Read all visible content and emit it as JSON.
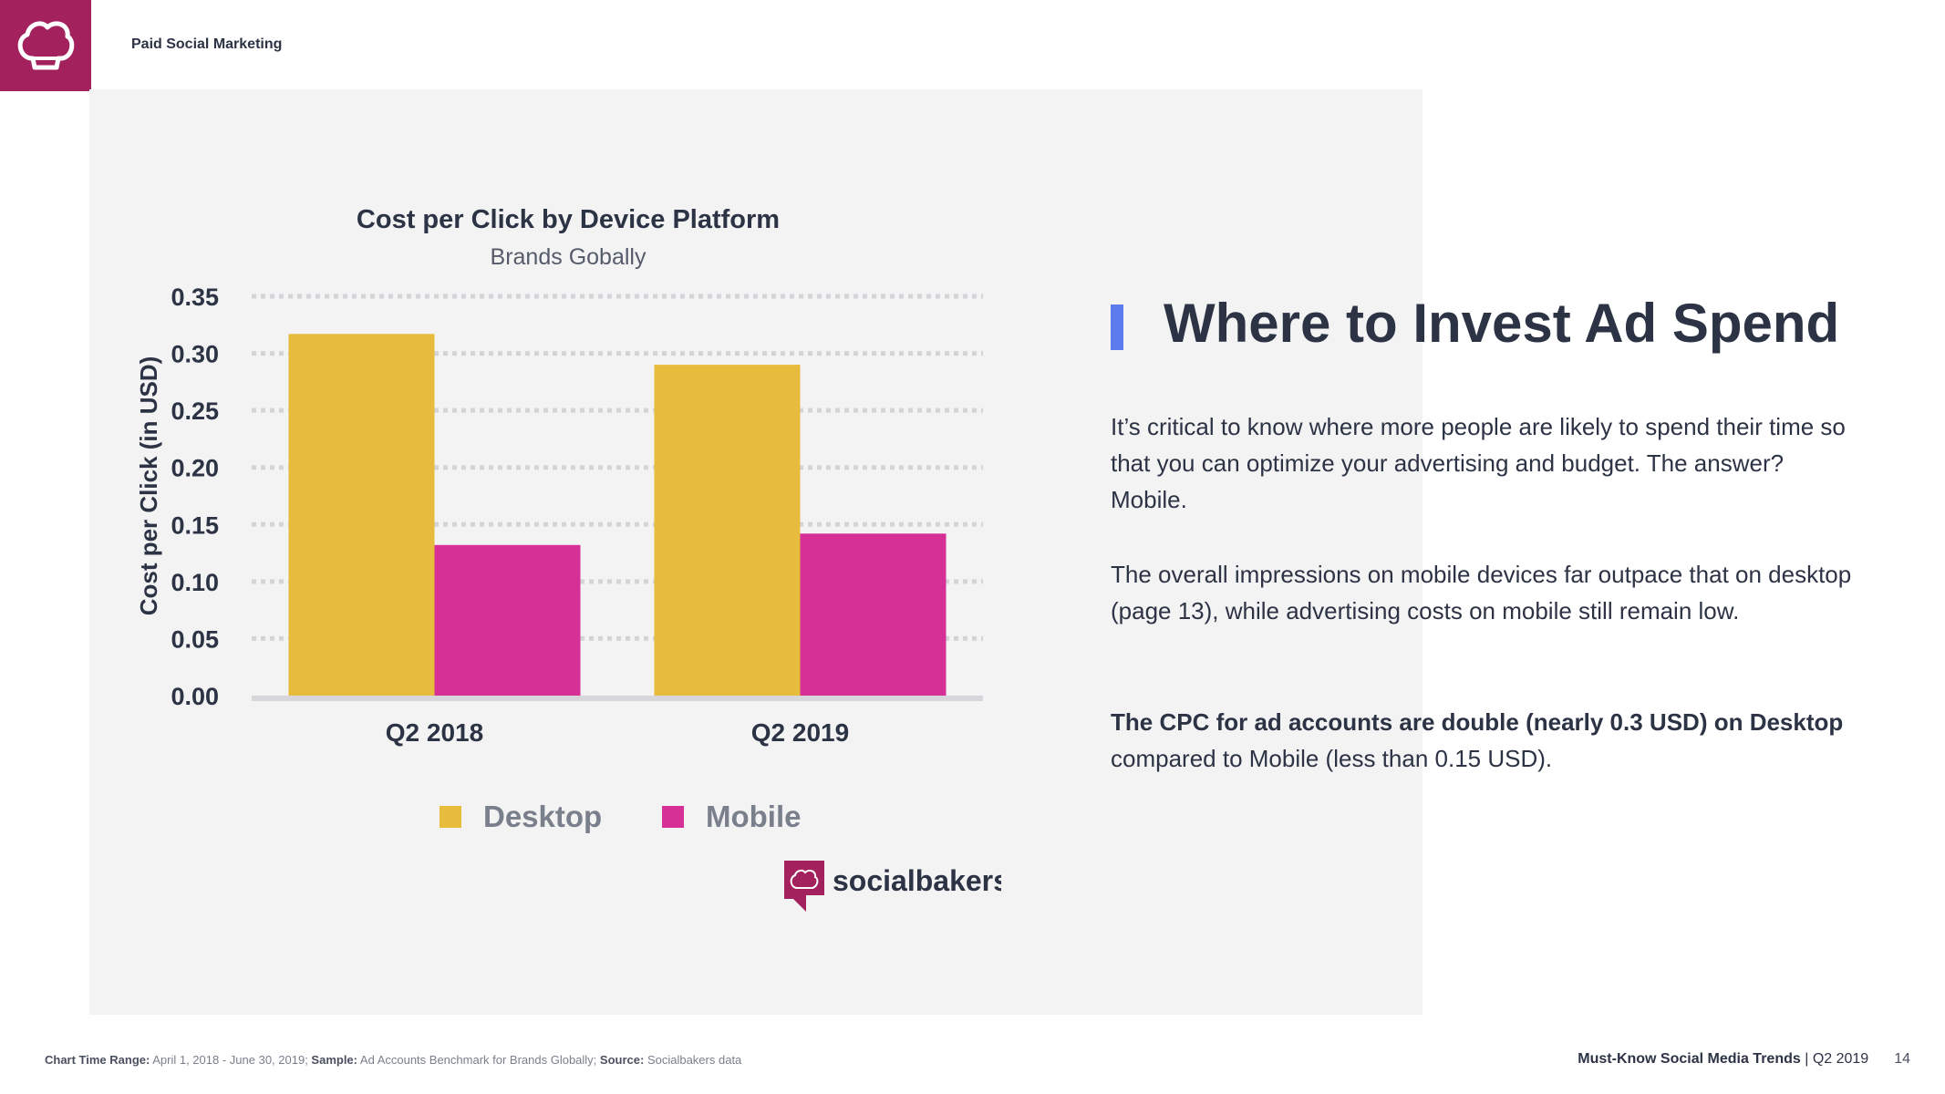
{
  "header": {
    "section_title": "Paid Social Marketing"
  },
  "colors": {
    "brand": "#a3225e",
    "desktop": "#e7bb3c",
    "mobile": "#d62f96",
    "accent": "#5b7bef",
    "text": "#2c3345"
  },
  "chart_data": {
    "type": "bar",
    "title": "Cost per Click by Device Platform",
    "subtitle": "Brands Gobally",
    "xlabel": "",
    "ylabel": "Cost per Click (in USD)",
    "categories": [
      "Q2 2018",
      "Q2 2019"
    ],
    "series": [
      {
        "name": "Desktop",
        "values": [
          0.317,
          0.29
        ]
      },
      {
        "name": "Mobile",
        "values": [
          0.132,
          0.142
        ]
      }
    ],
    "ylim": [
      0,
      0.35
    ],
    "yticks": [
      "0.00",
      "0.05",
      "0.10",
      "0.15",
      "0.20",
      "0.25",
      "0.30",
      "0.35"
    ],
    "grid": true,
    "legend_position": "bottom",
    "brand_logo_text": "socialbakers"
  },
  "content": {
    "heading": "Where to Invest Ad Spend",
    "p1": "It’s critical to know where more people are likely to spend their time so that you can optimize your advertising and budget. The answer? Mobile.",
    "p2": "The overall impressions on mobile devices far outpace that on desktop (page 13), while advertising costs on mobile still remain low.",
    "p3_bold": "The CPC for ad accounts are double (nearly 0.3 USD) on Desktop",
    "p3_rest": " compared to Mobile (less than 0.15 USD)."
  },
  "footer": {
    "time_label": "Chart Time Range:",
    "time_value": " April 1, 2018 - June 30, 2019;",
    "sample_label": " Sample:",
    "sample_value": " Ad Accounts Benchmark for Brands Globally;",
    "source_label": " Source:",
    "source_value": " Socialbakers data",
    "report_title": "Must-Know Social Media Trends",
    "report_period": " | Q2 2019",
    "page_number": "14"
  }
}
